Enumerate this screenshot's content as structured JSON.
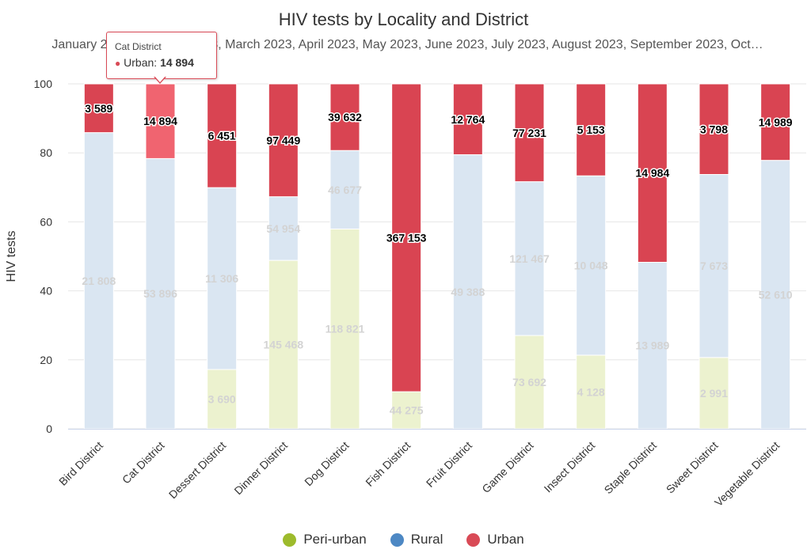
{
  "chart_data": {
    "type": "bar",
    "stacking": "percent",
    "title": "HIV tests by Locality and District",
    "subtitle": "January 2023, February 2023, March 2023, April 2023, May 2023, June 2023, July 2023, August 2023, September 2023, Oct…",
    "xlabel": "",
    "ylabel": "HIV tests",
    "ylim": [
      0,
      100
    ],
    "yticks": [
      0,
      20,
      40,
      60,
      80,
      100
    ],
    "grid": true,
    "legend_position": "bottom",
    "categories": [
      "Bird District",
      "Cat District",
      "Dessert District",
      "Dinner District",
      "Dog District",
      "Fish District",
      "Fruit District",
      "Game District",
      "Insect District",
      "Staple District",
      "Sweet District",
      "Vegetable District"
    ],
    "series": [
      {
        "name": "Peri-urban",
        "color": "#9dbb2c",
        "bar_color": "#ecf2cf",
        "values": [
          null,
          null,
          3690,
          145468,
          118821,
          44275,
          null,
          73692,
          4128,
          null,
          2991,
          null
        ]
      },
      {
        "name": "Rural",
        "color": "#4d88c4",
        "bar_color": "#dae6f2",
        "values": [
          21808,
          53896,
          11306,
          54954,
          46677,
          null,
          49388,
          121467,
          10048,
          13989,
          7673,
          52610
        ]
      },
      {
        "name": "Urban",
        "color": "#d94a56",
        "bar_color": "#d94452",
        "values": [
          3589,
          14894,
          6451,
          97449,
          39632,
          367153,
          12764,
          77231,
          5153,
          14984,
          3798,
          14989
        ]
      }
    ],
    "data_labels": {
      "Peri-urban": [
        "",
        "",
        "3 690",
        "145 468",
        "118 821",
        "44 275",
        "",
        "73 692",
        "4 128",
        "",
        "2 991",
        ""
      ],
      "Rural": [
        "21 808",
        "53 896",
        "11 306",
        "54 954",
        "46 677",
        "",
        "49 388",
        "121 467",
        "10 048",
        "13 989",
        "7 673",
        "52 610"
      ],
      "Urban": [
        "3 589",
        "14 894",
        "6 451",
        "97 449",
        "39 632",
        "367 153",
        "12 764",
        "77 231",
        "5 153",
        "14 984",
        "3 798",
        "14 989"
      ]
    },
    "highlight": {
      "category_index": 1,
      "series": "Urban",
      "color": "#f06470"
    }
  },
  "tooltip": {
    "title": "Cat District",
    "series": "Urban",
    "label": "Urban: ",
    "value": "14 894",
    "marker": "●"
  }
}
